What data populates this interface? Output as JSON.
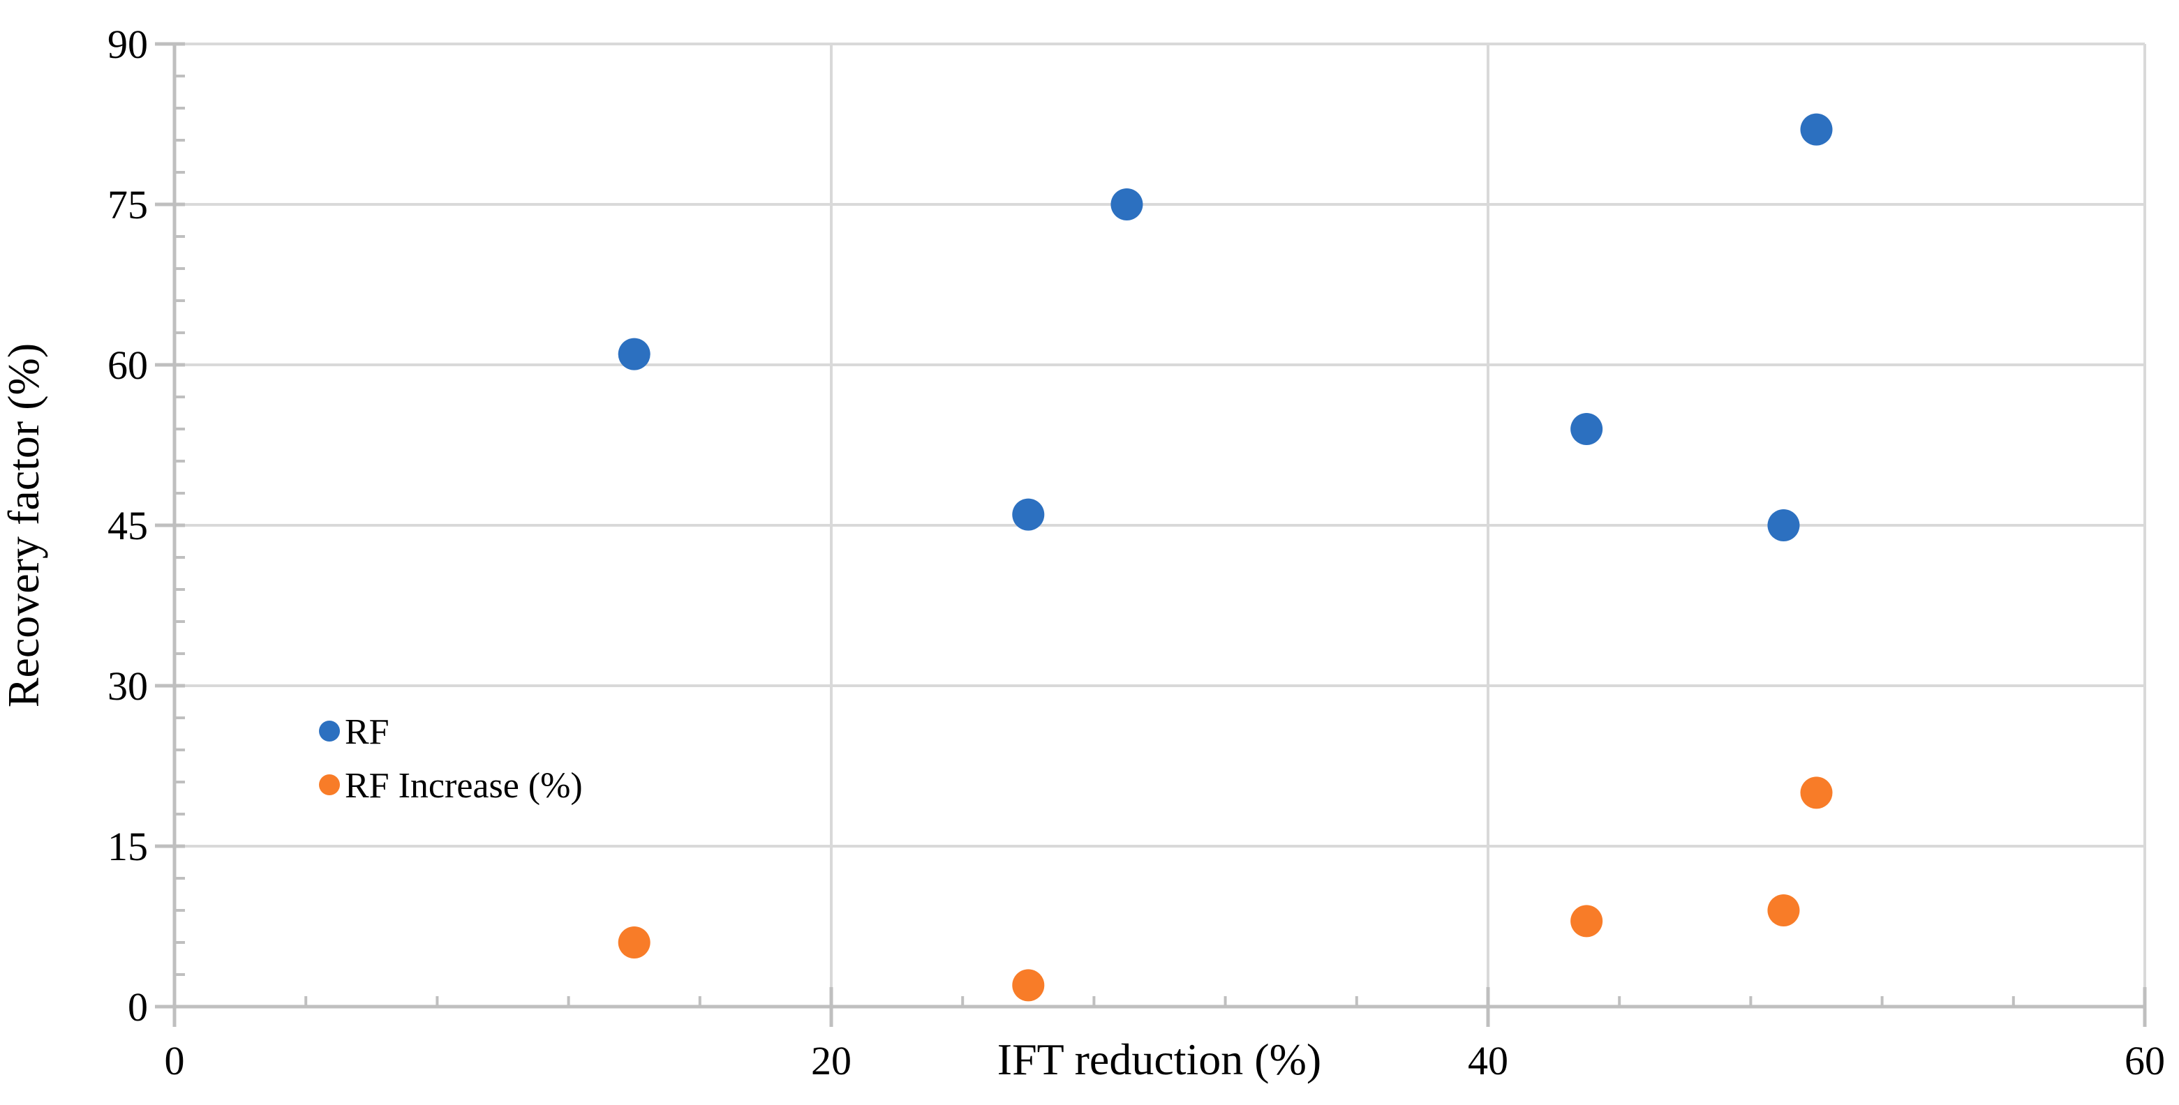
{
  "chart_data": {
    "type": "scatter",
    "title": "",
    "xlabel": "IFT reduction (%)",
    "ylabel": "Recovery factor (%)",
    "xlim": [
      0,
      60
    ],
    "ylim": [
      0,
      90
    ],
    "xticks": [
      0,
      20,
      40,
      60
    ],
    "yticks": [
      0,
      15,
      30,
      45,
      60,
      75,
      90
    ],
    "x_minor_step": 4,
    "y_minor_step": 3,
    "grid": true,
    "legend_position": "inside-left",
    "axis_color": "#BFBFBF",
    "grid_color": "#D9D9D9",
    "text_color": "#000000",
    "series": [
      {
        "name": "RF",
        "color": "#2C70C0",
        "points": [
          {
            "x": 14,
            "y": 61
          },
          {
            "x": 26,
            "y": 46
          },
          {
            "x": 29,
            "y": 75
          },
          {
            "x": 43,
            "y": 54
          },
          {
            "x": 49,
            "y": 45
          },
          {
            "x": 50,
            "y": 82
          }
        ]
      },
      {
        "name": "RF Increase (%)",
        "color": "#F87C28",
        "points": [
          {
            "x": 14,
            "y": 6
          },
          {
            "x": 26,
            "y": 2
          },
          {
            "x": 43,
            "y": 8
          },
          {
            "x": 49,
            "y": 9
          },
          {
            "x": 50,
            "y": 20
          }
        ]
      }
    ]
  }
}
